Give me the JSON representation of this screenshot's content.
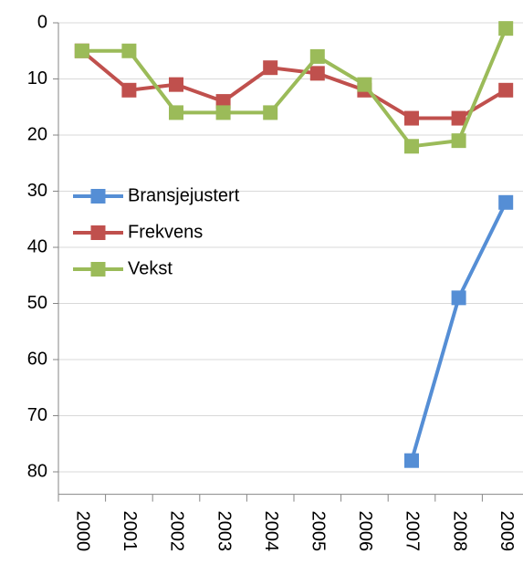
{
  "chart_data": {
    "type": "line",
    "categories": [
      "2000",
      "2001",
      "2002",
      "2003",
      "2004",
      "2005",
      "2006",
      "2007",
      "2008",
      "2009"
    ],
    "series": [
      {
        "name": "Bransjejustert",
        "color": "#558ed5",
        "values": [
          null,
          null,
          null,
          null,
          null,
          null,
          null,
          78,
          49,
          32
        ]
      },
      {
        "name": "Frekvens",
        "color": "#c0504d",
        "values": [
          5,
          12,
          11,
          14,
          8,
          9,
          12,
          17,
          17,
          12
        ]
      },
      {
        "name": "Vekst",
        "color": "#9bbb59",
        "values": [
          5,
          5,
          16,
          16,
          16,
          6,
          11,
          22,
          21,
          1
        ]
      }
    ],
    "ylim": [
      0,
      84
    ],
    "y_reversed": true,
    "yticks": [
      0,
      10,
      20,
      30,
      40,
      50,
      60,
      70,
      80
    ],
    "grid": true,
    "legend": "left"
  }
}
